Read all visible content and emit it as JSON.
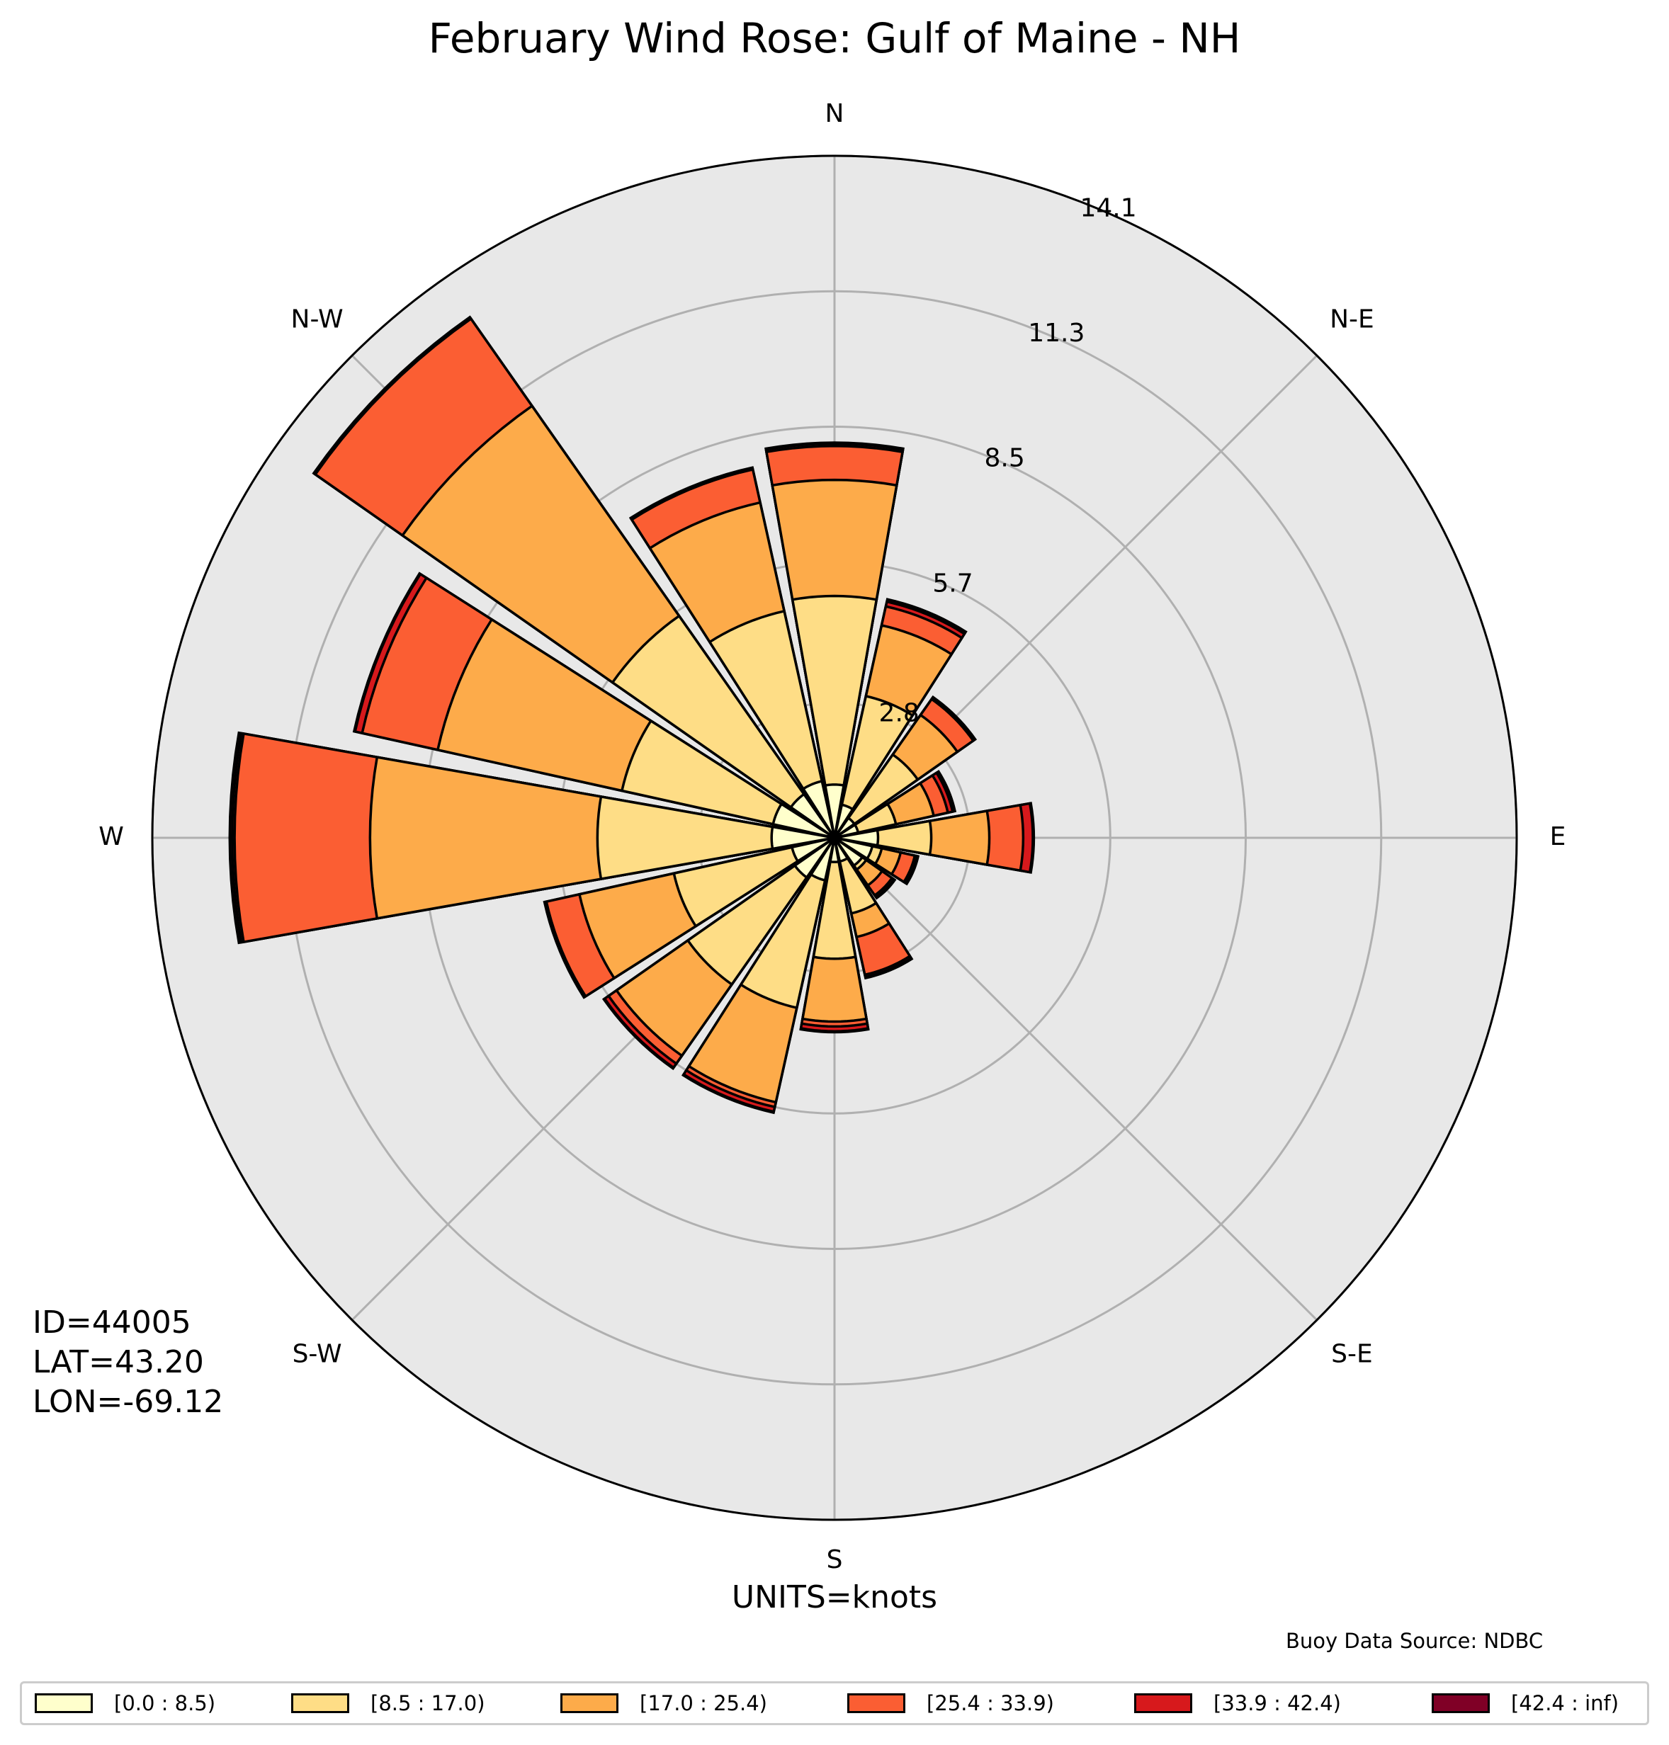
{
  "title": "February Wind Rose: Gulf of Maine - NH",
  "station": {
    "id": "ID=44005",
    "lat": "LAT=43.20",
    "lon": "LON=-69.12"
  },
  "units": "UNITS=knots",
  "source": "Buoy Data Source: NDBC",
  "chart_data": {
    "type": "windrose",
    "title": "February Wind Rose: Gulf of Maine - NH",
    "radial_ticks": [
      "2.8",
      "5.7",
      "8.5",
      "11.3",
      "14.1"
    ],
    "radial_tick_values": [
      2.8,
      5.7,
      8.5,
      11.3,
      14.1
    ],
    "rmax": 14.1,
    "direction_labels": [
      "N",
      "N-E",
      "E",
      "S-E",
      "S",
      "S-W",
      "W",
      "N-W"
    ],
    "grid": true,
    "legend_position": "bottom",
    "directions_deg": [
      0,
      22.5,
      45,
      67.5,
      90,
      112.5,
      135,
      157.5,
      180,
      202.5,
      225,
      247.5,
      270,
      292.5,
      315,
      337.5
    ],
    "speed_bins": [
      {
        "label": "[0.0 : 8.5)",
        "color": "#ffffcc"
      },
      {
        "label": "[8.5 : 17.0)",
        "color": "#fedd86"
      },
      {
        "label": "[17.0 : 25.4)",
        "color": "#fdab4a"
      },
      {
        "label": "[25.4 : 33.9)",
        "color": "#fb5e33"
      },
      {
        "label": "[33.9 : 42.4)",
        "color": "#d7191c"
      },
      {
        "label": "[42.4 : inf)",
        "color": "#800026"
      }
    ],
    "cumulative_values": [
      [
        1.1,
        5.0,
        7.4,
        8.1,
        8.15,
        8.17
      ],
      [
        0.7,
        3.0,
        4.5,
        4.9,
        5.0,
        5.05
      ],
      [
        0.5,
        2.1,
        3.1,
        3.5,
        3.52,
        3.55
      ],
      [
        0.5,
        1.3,
        2.1,
        2.4,
        2.5,
        2.55
      ],
      [
        0.9,
        2.0,
        3.2,
        3.9,
        4.1,
        4.12
      ],
      [
        0.8,
        1.0,
        1.4,
        1.7,
        1.75,
        1.77
      ],
      [
        0.7,
        0.8,
        1.2,
        1.45,
        1.5,
        1.52
      ],
      [
        0.5,
        1.6,
        2.1,
        2.9,
        2.95,
        2.97
      ],
      [
        0.5,
        2.5,
        3.8,
        3.9,
        4.0,
        4.02
      ],
      [
        0.9,
        3.6,
        5.6,
        5.7,
        5.8,
        5.82
      ],
      [
        1.0,
        3.7,
        5.5,
        5.7,
        5.8,
        5.82
      ],
      [
        0.9,
        3.4,
        5.4,
        6.1,
        6.12,
        6.14
      ],
      [
        1.3,
        4.9,
        9.6,
        12.4,
        12.45,
        12.5
      ],
      [
        1.3,
        4.5,
        8.4,
        10.0,
        10.15,
        10.17
      ],
      [
        1.1,
        5.6,
        10.9,
        13.1,
        13.12,
        13.14
      ],
      [
        1.2,
        4.8,
        7.1,
        7.8,
        7.82,
        7.84
      ]
    ]
  }
}
